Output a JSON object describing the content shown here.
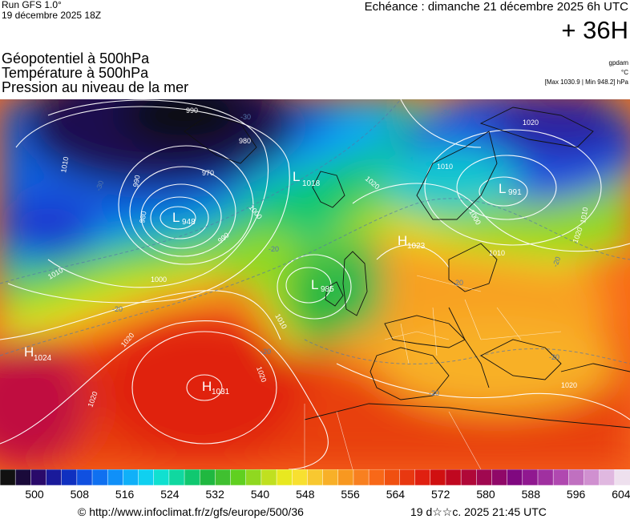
{
  "header": {
    "run": "Run GFS 1.0°",
    "run_date": "19 décembre 2025 18Z",
    "forecast": "Echéance : dimanche 21 décembre 2025 6h UTC",
    "lead": "+ 36H"
  },
  "titles": {
    "line1": "Géopotentiel à 500hPa",
    "line2": "Température à 500hPa",
    "line3": "Pression au niveau de la mer"
  },
  "units": {
    "gpdam": "gpdam",
    "celsius": "°C",
    "pressure_range": "[Max 1030.9 | Min 948.2] hPa"
  },
  "pressure_centers": [
    {
      "type": "L",
      "value": "948"
    },
    {
      "type": "L",
      "value": "985"
    },
    {
      "type": "L",
      "value": "991"
    },
    {
      "type": "L",
      "value": "1018"
    },
    {
      "type": "H",
      "value": "1024"
    },
    {
      "type": "H",
      "value": "1031"
    },
    {
      "type": "H",
      "value": "1023"
    }
  ],
  "isobar_labels": [
    "990",
    "980",
    "970",
    "980",
    "990",
    "1000",
    "1000",
    "1010",
    "1010",
    "1020",
    "1020",
    "1020",
    "1010",
    "1020",
    "1000",
    "1010",
    "1020",
    "1010",
    "1010",
    "990",
    "1020",
    "1020"
  ],
  "temp_labels": [
    "-30",
    "-30",
    "-30",
    "-20",
    "-20",
    "-20",
    "-20",
    "-20",
    "-20",
    "-20"
  ],
  "colorbar": {
    "ticks": [
      "500",
      "508",
      "516",
      "524",
      "532",
      "540",
      "548",
      "556",
      "564",
      "572",
      "580",
      "588",
      "596",
      "604"
    ],
    "colors": [
      "#111111",
      "#1a0a3a",
      "#2a0a6a",
      "#1a1a9a",
      "#1030c0",
      "#1050e0",
      "#1070f0",
      "#1090f8",
      "#10b0f8",
      "#10d0f0",
      "#10e0d0",
      "#10d8a0",
      "#10c870",
      "#20b840",
      "#40c030",
      "#60d020",
      "#90d820",
      "#c0e020",
      "#e8e820",
      "#f8e030",
      "#f8c830",
      "#f8b028",
      "#f89820",
      "#f88020",
      "#f86818",
      "#f05010",
      "#e83810",
      "#e02010",
      "#d01010",
      "#c00820",
      "#b00838",
      "#a00850",
      "#900868",
      "#800880",
      "#901890",
      "#a030a0",
      "#b048b0",
      "#c070c0",
      "#d090d0",
      "#e0b8e0",
      "#eee0ee"
    ]
  },
  "footer": {
    "url": "© http://www.infoclimat.fr/z/gfs/europe/500/36",
    "timestamp": "19 d☆☆c. 2025 21:45 UTC"
  }
}
